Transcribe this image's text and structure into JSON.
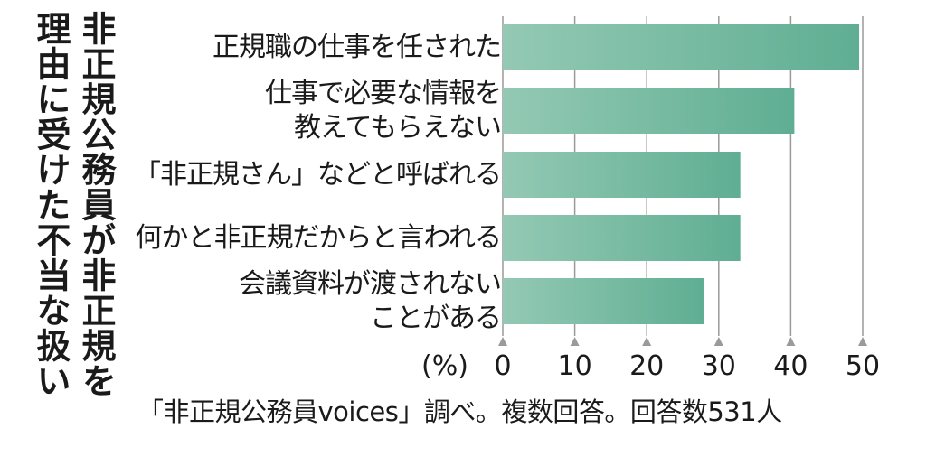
{
  "chart_data": {
    "type": "bar",
    "orientation": "horizontal",
    "title_lines": [
      "非正規公務員が非正規を",
      "理由に受けた不当な扱い"
    ],
    "categories": [
      [
        "正規職の仕事を任された"
      ],
      [
        "仕事で必要な情報を",
        "教えてもらえない"
      ],
      [
        "「非正規さん」などと呼ばれる"
      ],
      [
        "何かと非正規だからと言われる"
      ],
      [
        "会議資料が渡されない",
        "ことがある"
      ]
    ],
    "values": [
      49.5,
      40.5,
      33,
      33,
      28
    ],
    "unit": "(%)",
    "xlim": [
      0,
      50
    ],
    "ticks": [
      "0",
      "10",
      "20",
      "30",
      "40",
      "50"
    ],
    "grid": true,
    "bar_color_start": "#94c9b4",
    "bar_color_end": "#5fae93",
    "source": "「非正規公務員voices」調べ。複数回答。回答数531人"
  }
}
